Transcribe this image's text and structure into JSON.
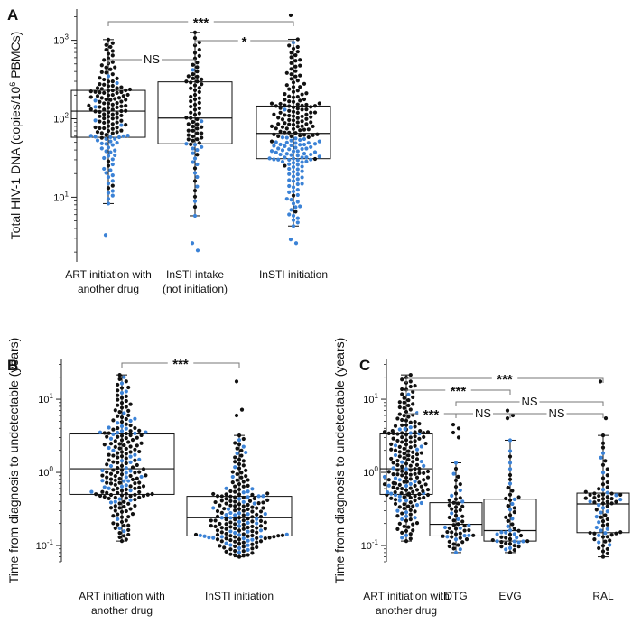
{
  "colors": {
    "black": "#111111",
    "blue": "#3b82d6",
    "bracket": "#777777"
  },
  "chart_data": [
    {
      "panel": "A",
      "type": "box-swarm",
      "yscale": "log",
      "ylabel_parts": [
        "Total HIV-1 DNA (copies/10",
        "6",
        " PBMCs)"
      ],
      "ylim": [
        1.5,
        2500
      ],
      "yticks": [
        {
          "value": 10,
          "base": "10",
          "exp": "1"
        },
        {
          "value": 100,
          "base": "10",
          "exp": "2"
        },
        {
          "value": 1000,
          "base": "10",
          "exp": "3"
        }
      ],
      "categories": [
        {
          "lines": [
            "ART initiation with",
            "another drug"
          ],
          "q1": 58,
          "median": 125,
          "q3": 230,
          "whisker_low": 8.3,
          "whisker_high": 1020,
          "n": 150,
          "blue_below": 62,
          "outliers": [
            3.3
          ]
        },
        {
          "lines": [
            "InSTI intake",
            "(not initiation)"
          ],
          "q1": 48,
          "median": 102,
          "q3": 295,
          "whisker_low": 5.8,
          "whisker_high": 1260,
          "n": 82,
          "blue_below": 48,
          "outliers": [
            2.6,
            2.1
          ]
        },
        {
          "lines": [
            "InSTI  initiation"
          ],
          "q1": 31,
          "median": 65,
          "q3": 145,
          "whisker_low": 4.3,
          "whisker_high": 1030,
          "n": 200,
          "blue_below": 58,
          "outliers": [
            2.9,
            2.6,
            2080
          ]
        }
      ],
      "comparisons": [
        {
          "from": 0,
          "to": 2,
          "label": "***",
          "level": 3
        },
        {
          "from": 0,
          "to": 1,
          "label": "NS",
          "level": 1
        },
        {
          "from": 1,
          "to": 2,
          "label": "*",
          "level": 2
        }
      ]
    },
    {
      "panel": "B",
      "type": "box-swarm",
      "yscale": "log",
      "ylabel_parts": [
        "Time from diagnosis to undetectable (years)"
      ],
      "ylim": [
        0.06,
        35
      ],
      "yticks": [
        {
          "value": 0.1,
          "base": "10",
          "exp": "-1"
        },
        {
          "value": 1,
          "base": "10",
          "exp": "0"
        },
        {
          "value": 10,
          "base": "10",
          "exp": "1"
        }
      ],
      "categories": [
        {
          "lines": [
            "ART initiation with",
            "another drug"
          ],
          "q1": 0.5,
          "median": 1.12,
          "q3": 3.35,
          "whisker_low": 0.115,
          "whisker_high": 21.5,
          "n": 210,
          "blue_frac": 0.22,
          "outliers": []
        },
        {
          "lines": [
            "InSTI  initiation"
          ],
          "q1": 0.135,
          "median": 0.24,
          "q3": 0.47,
          "whisker_low": 0.07,
          "whisker_high": 3.2,
          "n": 200,
          "blue_frac": 0.3,
          "outliers": [
            17.5,
            7.2,
            6.0
          ]
        }
      ],
      "comparisons": [
        {
          "from": 0,
          "to": 1,
          "label": "***",
          "level": 1
        }
      ]
    },
    {
      "panel": "C",
      "type": "box-swarm",
      "yscale": "log",
      "ylabel_parts": [
        "Time from diagnosis to undetectable (years)"
      ],
      "ylim": [
        0.06,
        35
      ],
      "yticks": [
        {
          "value": 0.1,
          "base": "10",
          "exp": "-1"
        },
        {
          "value": 1,
          "base": "10",
          "exp": "0"
        },
        {
          "value": 10,
          "base": "10",
          "exp": "1"
        }
      ],
      "categories": [
        {
          "lines": [
            "ART initiation with",
            "another drug"
          ],
          "q1": 0.5,
          "median": 1.12,
          "q3": 3.35,
          "whisker_low": 0.115,
          "whisker_high": 21.5,
          "n": 210,
          "blue_frac": 0.22,
          "outliers": []
        },
        {
          "lines": [
            "DTG"
          ],
          "q1": 0.135,
          "median": 0.195,
          "q3": 0.385,
          "whisker_low": 0.08,
          "whisker_high": 1.35,
          "n": 60,
          "blue_frac": 0.35,
          "outliers": [
            4.5,
            4.0,
            3.5,
            3.0
          ]
        },
        {
          "lines": [
            "EVG"
          ],
          "q1": 0.115,
          "median": 0.16,
          "q3": 0.43,
          "whisker_low": 0.08,
          "whisker_high": 2.75,
          "n": 55,
          "blue_frac": 0.3,
          "outliers": [
            7.0,
            6.0,
            5.5
          ]
        },
        {
          "lines": [
            "RAL"
          ],
          "q1": 0.15,
          "median": 0.37,
          "q3": 0.52,
          "whisker_low": 0.07,
          "whisker_high": 3.2,
          "n": 75,
          "blue_frac": 0.3,
          "outliers": [
            17.5,
            5.5
          ]
        }
      ],
      "comparisons": [
        {
          "from": 0,
          "to": 3,
          "label": "***",
          "level": 5
        },
        {
          "from": 0,
          "to": 2,
          "label": "***",
          "level": 4
        },
        {
          "from": 1,
          "to": 3,
          "label": "NS",
          "level": 3
        },
        {
          "from": 0,
          "to": 1,
          "label": "***",
          "level": 2
        },
        {
          "from": 1,
          "to": 2,
          "label": "NS",
          "level": 2
        },
        {
          "from": 2,
          "to": 3,
          "label": "NS",
          "level": 2
        }
      ]
    }
  ]
}
